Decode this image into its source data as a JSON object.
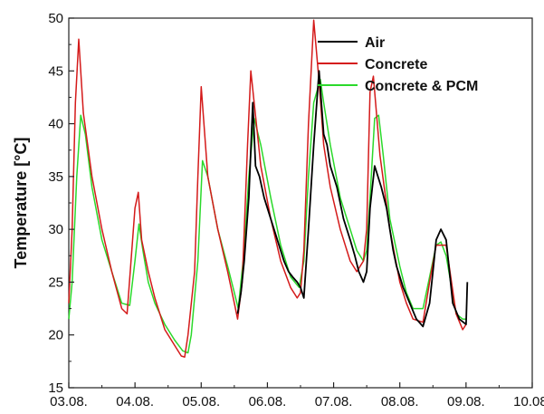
{
  "chart_data": {
    "type": "line",
    "title": "",
    "xlabel": "",
    "ylabel": "Temperature [°C]",
    "xlim": [
      0,
      7
    ],
    "ylim": [
      15,
      50
    ],
    "x_ticks": [
      {
        "v": 0,
        "label": "03.08."
      },
      {
        "v": 1,
        "label": "04.08."
      },
      {
        "v": 2,
        "label": "05.08."
      },
      {
        "v": 3,
        "label": "06.08."
      },
      {
        "v": 4,
        "label": "07.08."
      },
      {
        "v": 5,
        "label": "08.08."
      },
      {
        "v": 6,
        "label": "09.08."
      },
      {
        "v": 7,
        "label": "10.08."
      }
    ],
    "y_ticks": [
      15,
      20,
      25,
      30,
      35,
      40,
      45,
      50
    ],
    "grid": false,
    "legend_position": "top-right",
    "series": [
      {
        "name": "Air",
        "color": "#000000",
        "x": [
          2.55,
          2.6,
          2.65,
          2.72,
          2.78,
          2.82,
          2.88,
          2.95,
          3.05,
          3.15,
          3.25,
          3.32,
          3.38,
          3.45,
          3.5,
          3.55,
          3.62,
          3.7,
          3.78,
          3.85,
          3.9,
          3.95,
          4.05,
          4.15,
          4.25,
          4.32,
          4.38,
          4.45,
          4.5,
          4.55,
          4.62,
          4.72,
          4.8,
          4.85,
          4.9,
          4.95,
          5.05,
          5.15,
          5.25,
          5.35,
          5.45,
          5.5,
          5.55,
          5.62,
          5.7,
          5.8,
          5.9,
          6.0,
          6.02
        ],
        "y": [
          22,
          24,
          27,
          33,
          42,
          36,
          35,
          33,
          31,
          29,
          27,
          26,
          25.5,
          25,
          24.5,
          23.5,
          30,
          38,
          45,
          39,
          38,
          36,
          34,
          31,
          29,
          27.5,
          26,
          25,
          26,
          32,
          36,
          34,
          32,
          30,
          28,
          26.5,
          24.5,
          23,
          21.5,
          20.8,
          23,
          26,
          29,
          30,
          29,
          23,
          21.5,
          21,
          25
        ]
      },
      {
        "name": "Concrete",
        "color": "#d41a1a",
        "x": [
          0,
          0.05,
          0.1,
          0.15,
          0.22,
          0.35,
          0.5,
          0.65,
          0.8,
          0.88,
          1.0,
          1.05,
          1.1,
          1.2,
          1.3,
          1.45,
          1.6,
          1.7,
          1.75,
          1.8,
          1.9,
          1.95,
          2.0,
          2.1,
          2.25,
          2.4,
          2.5,
          2.55,
          2.62,
          2.7,
          2.75,
          2.8,
          2.9,
          3.05,
          3.2,
          3.35,
          3.45,
          3.5,
          3.55,
          3.62,
          3.7,
          3.78,
          3.85,
          3.95,
          4.1,
          4.25,
          4.35,
          4.45,
          4.5,
          4.55,
          4.6,
          4.7,
          4.85,
          5.0,
          5.1,
          5.2,
          5.35,
          5.45,
          5.55,
          5.7,
          5.85,
          5.95,
          6.0
        ],
        "y": [
          23,
          30,
          42,
          48,
          41,
          35,
          30,
          26,
          22.5,
          22,
          32,
          33.5,
          29,
          26,
          23.5,
          20.5,
          19,
          18,
          17.9,
          20,
          26,
          35,
          43.5,
          35,
          30,
          26,
          23,
          21.5,
          25,
          38,
          45,
          42,
          36,
          31,
          27,
          24.5,
          23.5,
          24,
          28,
          40,
          49.8,
          44,
          38,
          34,
          30,
          27,
          26,
          27,
          30,
          43,
          44.5,
          37,
          30,
          25,
          23,
          21.5,
          21.2,
          25,
          28.5,
          28.5,
          22,
          20.5,
          21
        ]
      },
      {
        "name": "Concrete & PCM",
        "color": "#2bd92b",
        "x": [
          0,
          0.05,
          0.12,
          0.18,
          0.25,
          0.35,
          0.5,
          0.65,
          0.8,
          0.92,
          1.0,
          1.06,
          1.12,
          1.2,
          1.3,
          1.45,
          1.6,
          1.72,
          1.8,
          1.85,
          1.95,
          2.02,
          2.1,
          2.25,
          2.4,
          2.5,
          2.56,
          2.65,
          2.72,
          2.8,
          2.9,
          3.05,
          3.2,
          3.35,
          3.48,
          3.55,
          3.62,
          3.7,
          3.8,
          3.85,
          3.95,
          4.1,
          4.25,
          4.35,
          4.45,
          4.5,
          4.55,
          4.62,
          4.68,
          4.75,
          4.85,
          5.0,
          5.1,
          5.2,
          5.35,
          5.45,
          5.55,
          5.62,
          5.7,
          5.85,
          5.95,
          6.0
        ],
        "y": [
          21.5,
          25,
          35,
          40.8,
          39,
          34,
          29,
          26,
          23,
          22.8,
          27,
          30.5,
          28,
          25,
          23,
          21,
          19.5,
          18.5,
          18.3,
          20,
          27,
          36.5,
          35,
          30,
          26.5,
          24,
          22.5,
          28,
          35,
          40.5,
          38,
          33,
          28.5,
          25.5,
          24.5,
          27,
          35,
          42,
          44.2,
          42,
          38,
          33,
          30,
          28,
          27,
          28,
          33,
          40.5,
          40.8,
          37,
          31,
          26.5,
          24,
          22.5,
          22.5,
          25.5,
          28.5,
          28.8,
          27.5,
          22,
          21.5,
          21.5
        ]
      }
    ]
  }
}
